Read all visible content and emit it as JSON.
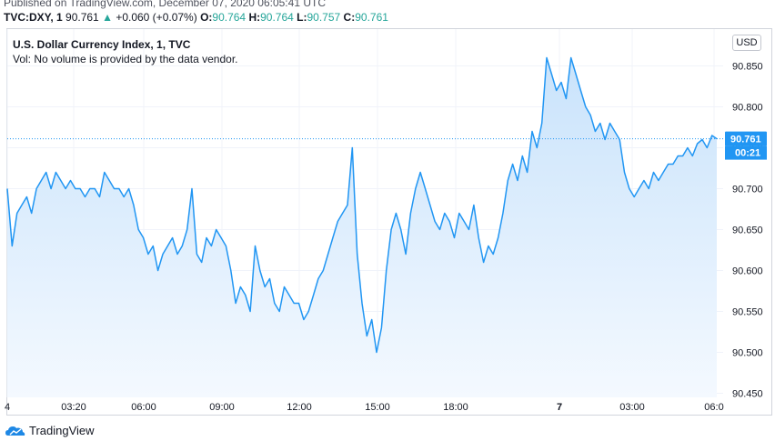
{
  "header": {
    "published": "Published on TradingView.com, December 07, 2020 06:05:41 UTC",
    "symbol": "TVC:DXY, 1",
    "last": "90.761",
    "arrow": "▲",
    "change": "+0.060 (+0.07%)",
    "o_label": "O:",
    "o_value": "90.764",
    "h_label": "H:",
    "h_value": "90.764",
    "l_label": "L:",
    "l_value": "90.757",
    "c_label": "C:",
    "c_value": "90.761"
  },
  "legend": {
    "title": "U.S. Dollar Currency Index, 1, TVC",
    "volume_note": "Vol: No volume is provided by the data vendor."
  },
  "price_scale": {
    "currency": "USD",
    "last_price_label": "90.761",
    "countdown_label": "00:21"
  },
  "footer": {
    "brand": "TradingView"
  },
  "colors": {
    "line": "#2196f3",
    "area_top": "#c9e3fb",
    "area_bottom": "#f4f9ff",
    "up": "#26a69a",
    "last_price_bg": "#2196f3"
  },
  "chart_data": {
    "type": "area",
    "title": "U.S. Dollar Currency Index, 1, TVC",
    "xlabel": "",
    "ylabel": "",
    "ylim": [
      90.445,
      90.895
    ],
    "y_ticks": [
      "90.850",
      "90.800",
      "90.750",
      "90.700",
      "90.650",
      "90.600",
      "90.550",
      "90.500",
      "90.450"
    ],
    "x_ticks": [
      "4",
      "03:20",
      "06:00",
      "09:00",
      "12:00",
      "15:00",
      "18:00",
      "7",
      "03:00",
      "06:0"
    ],
    "grid": true,
    "last_value": 90.761,
    "series": [
      {
        "values": [
          90.7,
          90.63,
          90.67,
          90.68,
          90.69,
          90.67,
          90.7,
          90.71,
          90.72,
          90.7,
          90.72,
          90.71,
          90.7,
          90.71,
          90.7,
          90.7,
          90.69,
          90.7,
          90.7,
          90.69,
          90.72,
          90.71,
          90.7,
          90.7,
          90.69,
          90.7,
          90.68,
          90.65,
          90.64,
          90.62,
          90.63,
          90.6,
          90.62,
          90.63,
          90.64,
          90.62,
          90.63,
          90.65,
          90.7,
          90.62,
          90.61,
          90.64,
          90.63,
          90.65,
          90.64,
          90.63,
          90.6,
          90.56,
          90.58,
          90.57,
          90.55,
          90.63,
          90.6,
          90.58,
          90.59,
          90.56,
          90.55,
          90.58,
          90.57,
          90.56,
          90.56,
          90.54,
          90.55,
          90.57,
          90.59,
          90.6,
          90.62,
          90.64,
          90.66,
          90.67,
          90.68,
          90.75,
          90.62,
          90.56,
          90.52,
          90.54,
          90.5,
          90.53,
          90.6,
          90.65,
          90.67,
          90.65,
          90.62,
          90.67,
          90.7,
          90.72,
          90.7,
          90.68,
          90.66,
          90.65,
          90.67,
          90.66,
          90.64,
          90.67,
          90.66,
          90.65,
          90.68,
          90.64,
          90.61,
          90.63,
          90.62,
          90.64,
          90.67,
          90.71,
          90.73,
          90.71,
          90.74,
          90.72,
          90.77,
          90.75,
          90.78,
          90.86,
          90.84,
          90.82,
          90.83,
          90.81,
          90.86,
          90.84,
          90.82,
          90.8,
          90.79,
          90.77,
          90.78,
          90.76,
          90.78,
          90.77,
          90.76,
          90.72,
          90.7,
          90.69,
          90.7,
          90.71,
          90.7,
          90.72,
          90.71,
          90.72,
          90.73,
          90.73,
          90.74,
          90.74,
          90.75,
          90.74,
          90.755,
          90.76,
          90.75,
          90.765,
          90.761
        ]
      }
    ]
  }
}
